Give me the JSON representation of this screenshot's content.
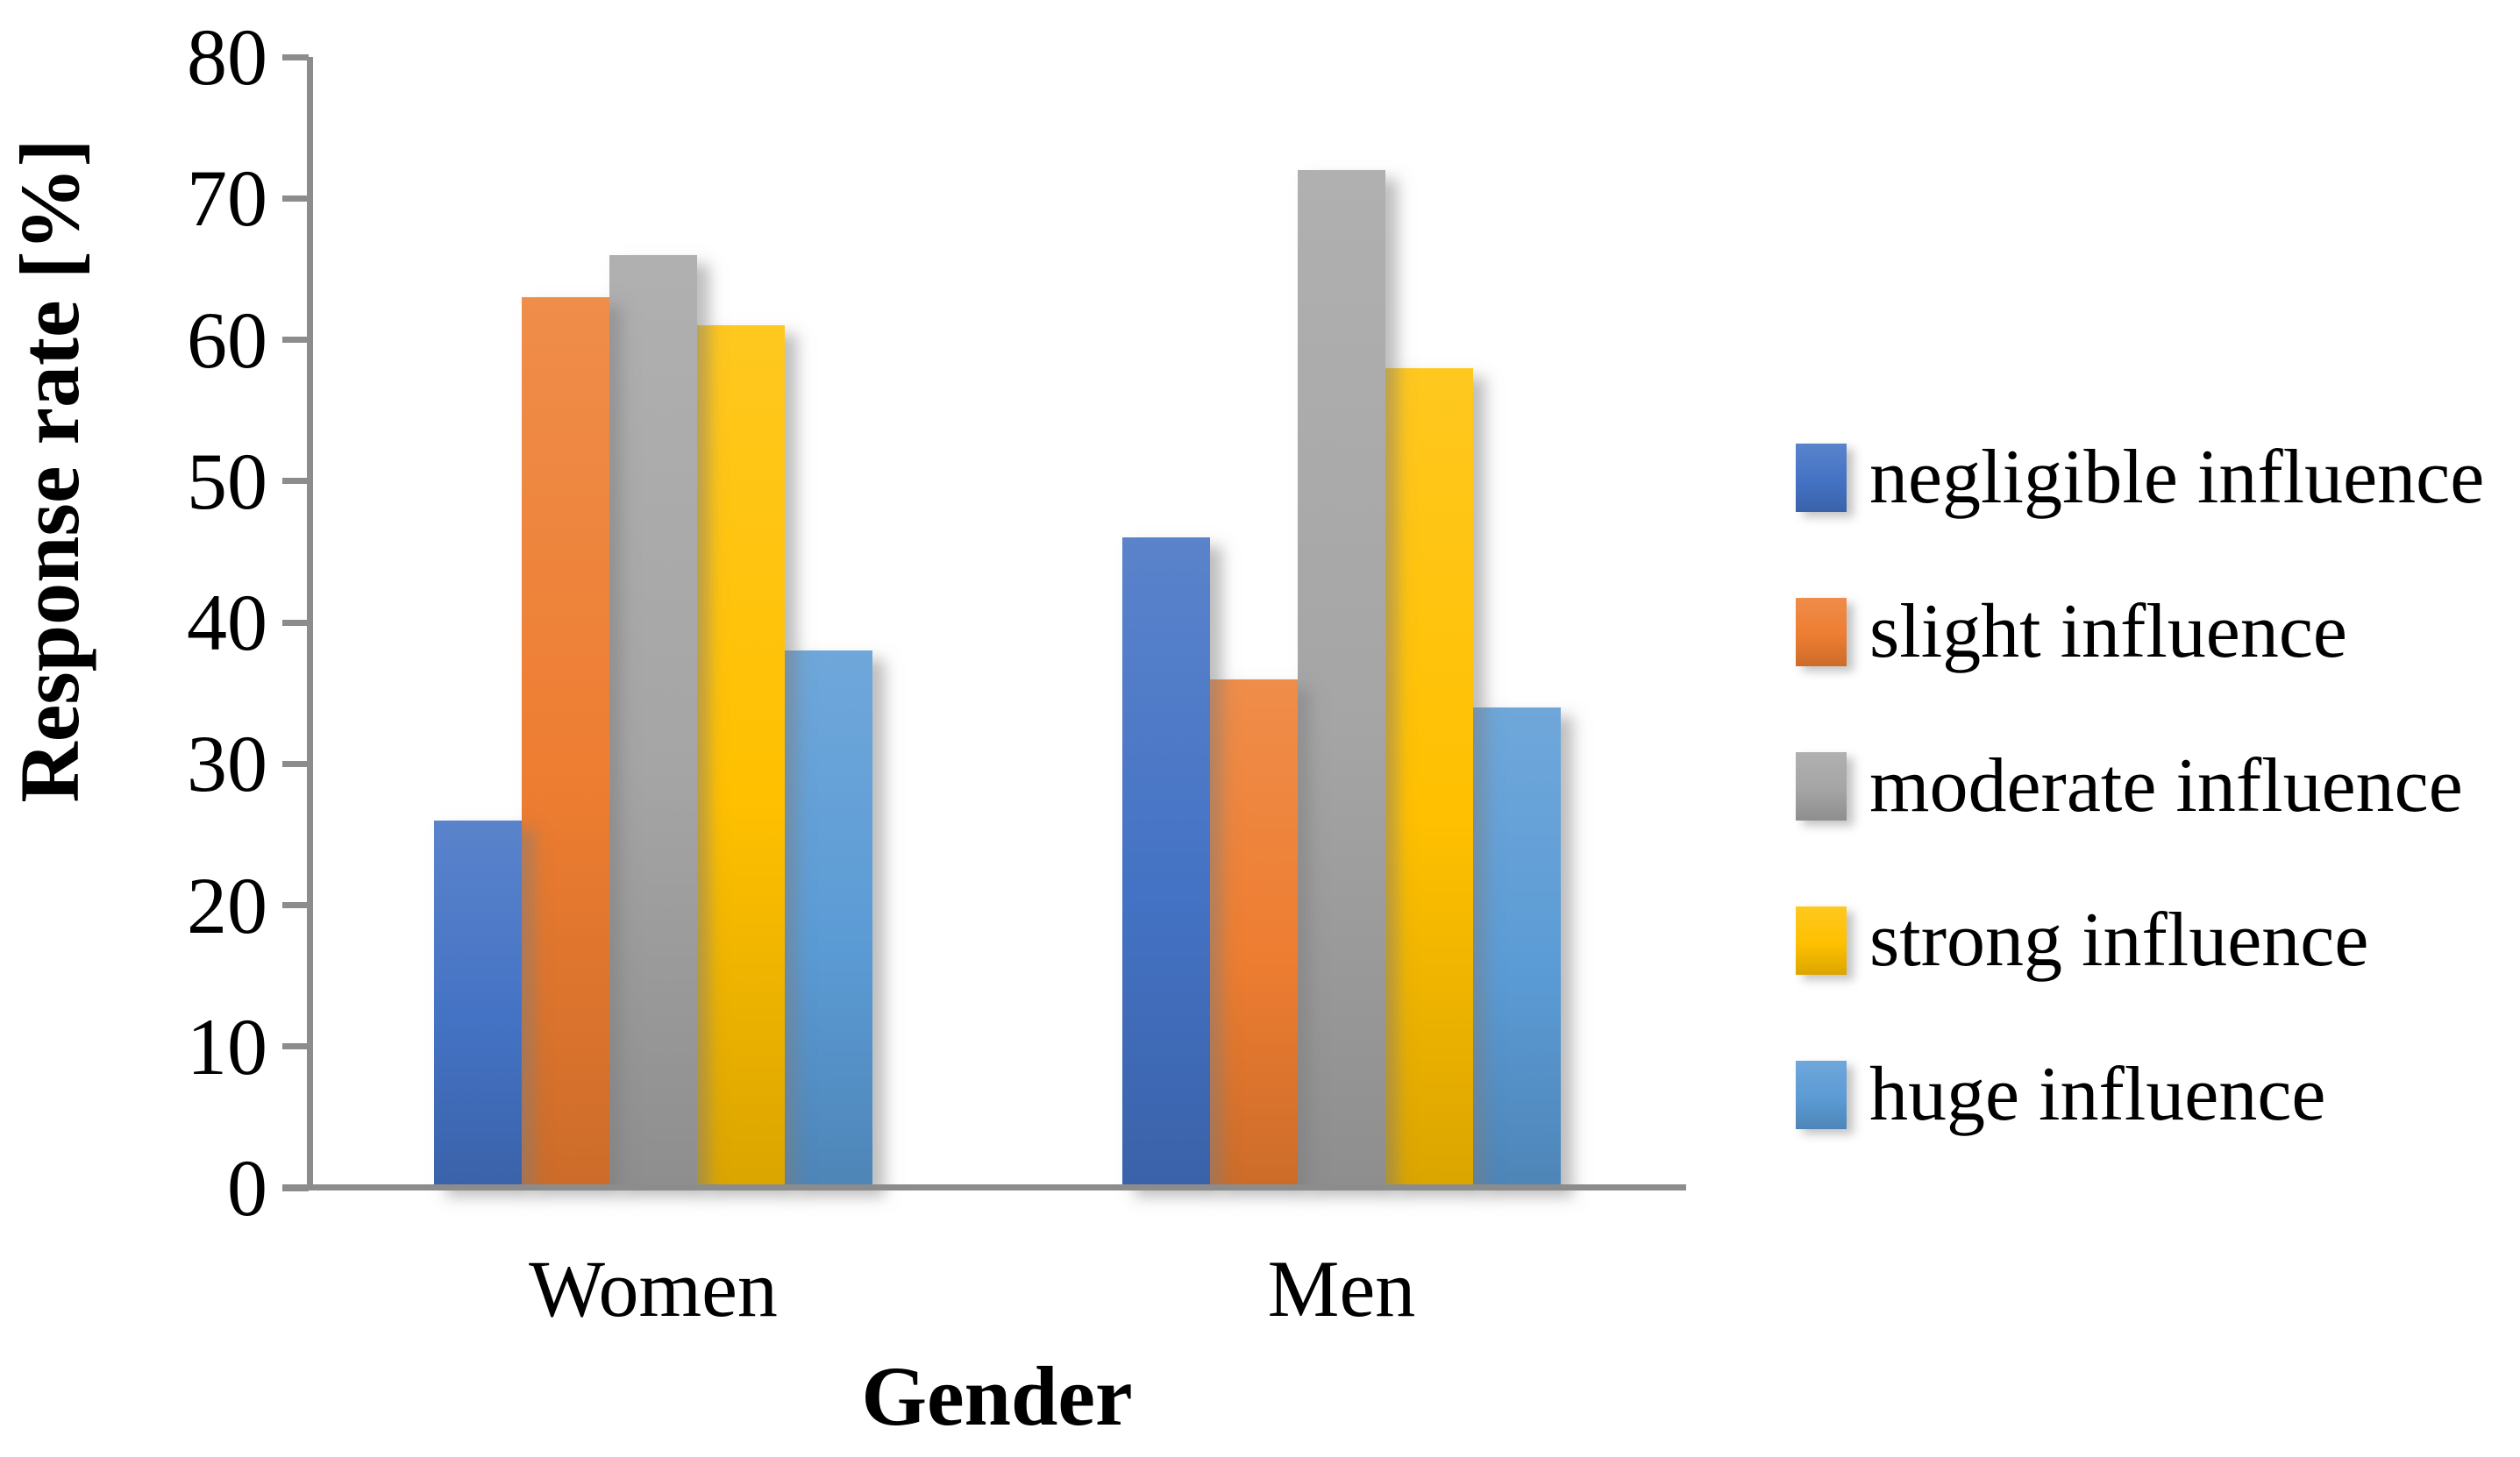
{
  "chart_data": {
    "type": "bar",
    "title": "",
    "xlabel": "Gender",
    "ylabel": "Response rate [%]",
    "categories": [
      "Women",
      "Men"
    ],
    "series": [
      {
        "name": "negligible influence",
        "color": "#4472C4",
        "values": [
          26,
          46
        ]
      },
      {
        "name": "slight influence",
        "color": "#ED7D31",
        "values": [
          63,
          36
        ]
      },
      {
        "name": "moderate influence",
        "color": "#A5A5A5",
        "values": [
          66,
          72
        ]
      },
      {
        "name": "strong influence",
        "color": "#FFC000",
        "values": [
          61,
          58
        ]
      },
      {
        "name": "huge influence",
        "color": "#5B9BD5",
        "values": [
          38,
          34
        ]
      }
    ],
    "ylim": [
      0,
      80
    ],
    "yticks": [
      0,
      10,
      20,
      30,
      40,
      50,
      60,
      70,
      80
    ],
    "legend_position": "right",
    "grid": false,
    "axis_color": "#8c8c8c",
    "text_color": "#000000"
  }
}
